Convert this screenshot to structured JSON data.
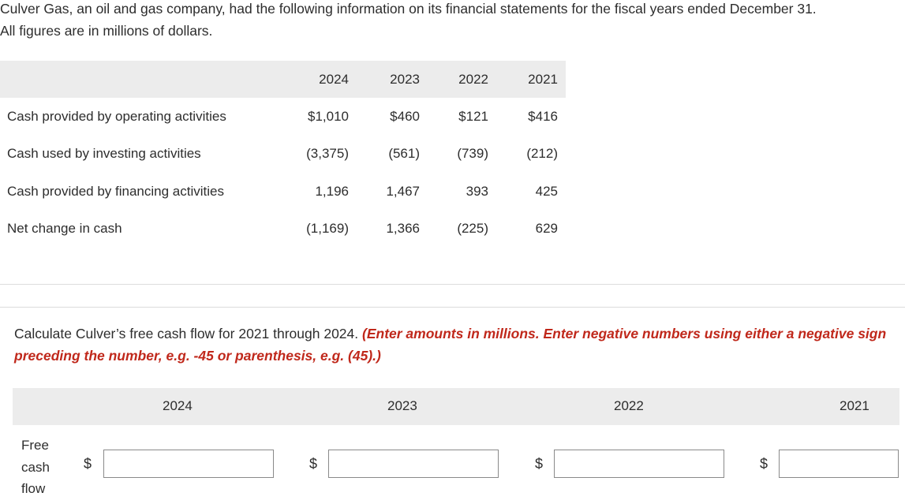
{
  "intro": {
    "line1": "Culver Gas, an oil and gas company, had the following information on its financial statements for the fiscal years ended December 31.",
    "line2": "All figures are in millions of dollars."
  },
  "statement": {
    "years": [
      "2024",
      "2023",
      "2022",
      "2021"
    ],
    "rows": [
      {
        "label": "Cash provided by operating activities",
        "values": [
          "$1,010",
          "$460",
          "$121",
          "$416"
        ]
      },
      {
        "label": "Cash used by investing activities",
        "values": [
          "(3,375)",
          "(561)",
          "(739)",
          "(212)"
        ]
      },
      {
        "label": "Cash provided by financing activities",
        "values": [
          "1,196",
          "1,467",
          "393",
          "425"
        ]
      },
      {
        "label": "Net change in cash",
        "values": [
          "(1,169)",
          "1,366",
          "(225)",
          "629"
        ]
      }
    ]
  },
  "question": {
    "text": "Calculate Culver’s free cash flow for 2021 through 2024. ",
    "instruction": "(Enter amounts in millions. Enter negative numbers using either a negative sign preceding the number, e.g. -45 or parenthesis, e.g. (45).)"
  },
  "answer": {
    "years": [
      "2024",
      "2023",
      "2022",
      "2021"
    ],
    "row_label_lines": [
      "Free",
      "cash",
      "flow"
    ],
    "currency": "$",
    "values": [
      "",
      "",
      "",
      ""
    ]
  }
}
